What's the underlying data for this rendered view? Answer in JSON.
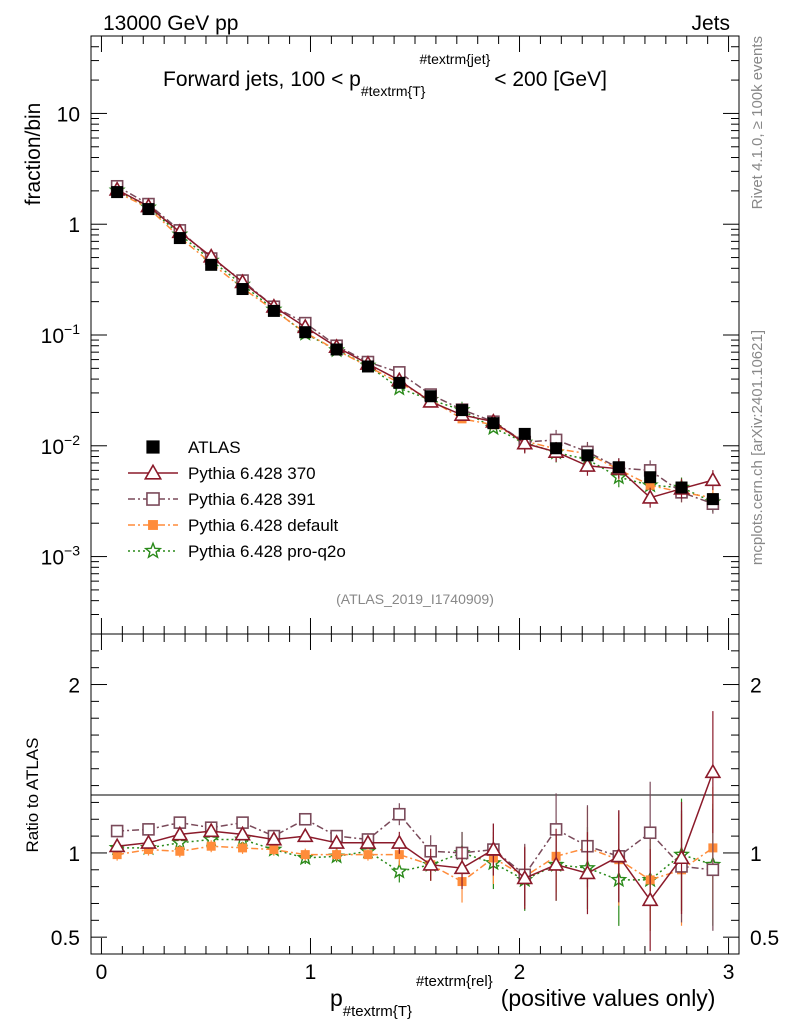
{
  "header": {
    "energy": "13000 GeV pp",
    "tag": "Jets"
  },
  "side": {
    "rivet": "Rivet 4.1.0, ≥ 100k events",
    "mcplots": "mcplots.cern.ch [arXiv:2401.10621]"
  },
  "main_title": {
    "pre": "Forward jets, 100 < p",
    "sub": "#textrm{T}",
    "sup": "#textrm{jet}",
    "post": "< 200 [GeV]"
  },
  "watermark": "(ATLAS_2019_I1740909)",
  "xlabel": {
    "pre": "p",
    "sub": "#textrm{T}",
    "sup": "#textrm{rel}",
    "post": "(positive values only)"
  },
  "colors": {
    "ATLAS": "#000000",
    "p370": "#8b1a2a",
    "p391": "#7a4a5a",
    "def": "#ff8c3a",
    "pro": "#2a8a1a"
  },
  "chart_data": [
    {
      "type": "scatter",
      "title": "Forward jets, 100 < p_T^jet < 200 [GeV]",
      "ylabel": "fraction/bin",
      "yscale": "log",
      "ylim": [
        0.0002,
        50
      ],
      "xlim": [
        -0.05,
        3.05
      ],
      "yticks": [
        {
          "v": 10,
          "b": "10",
          "e": ""
        },
        {
          "v": 1,
          "b": "1",
          "e": ""
        },
        {
          "v": 0.1,
          "b": "10",
          "e": "−1"
        },
        {
          "v": 0.01,
          "b": "10",
          "e": "−2"
        },
        {
          "v": 0.001,
          "b": "10",
          "e": "−3"
        }
      ],
      "x": [
        0.075,
        0.225,
        0.375,
        0.525,
        0.675,
        0.825,
        0.975,
        1.125,
        1.275,
        1.425,
        1.575,
        1.725,
        1.875,
        2.025,
        2.175,
        2.325,
        2.475,
        2.625,
        2.775,
        2.925
      ],
      "series": [
        {
          "name": "ATLAS",
          "key": "ATLAS",
          "marker": "square-filled",
          "values": [
            1.95,
            1.37,
            0.75,
            0.43,
            0.26,
            0.165,
            0.106,
            0.074,
            0.052,
            0.037,
            0.028,
            0.021,
            0.016,
            0.0128,
            0.0095,
            0.0082,
            0.0064,
            0.0052,
            0.0042,
            0.0033
          ]
        },
        {
          "name": "Pythia 6.428 370",
          "key": "p370",
          "marker": "triangle-open",
          "dash": "",
          "values": [
            2.05,
            1.45,
            0.85,
            0.51,
            0.3,
            0.18,
            0.118,
            0.078,
            0.055,
            0.039,
            0.025,
            0.019,
            0.0165,
            0.0105,
            0.0088,
            0.0066,
            0.0062,
            0.0034,
            0.0041,
            0.0049
          ]
        },
        {
          "name": "Pythia 6.428 391",
          "key": "p391",
          "marker": "square-open",
          "dash": "7,3,2,3",
          "values": [
            2.2,
            1.52,
            0.88,
            0.49,
            0.31,
            0.18,
            0.128,
            0.08,
            0.057,
            0.046,
            0.029,
            0.0212,
            0.0165,
            0.0108,
            0.0113,
            0.0088,
            0.0063,
            0.006,
            0.0038,
            0.003
          ]
        },
        {
          "name": "Pythia 6.428 default",
          "key": "def",
          "marker": "square-filled-small",
          "dash": "7,3,2,3",
          "values": [
            1.94,
            1.4,
            0.76,
            0.445,
            0.265,
            0.167,
            0.105,
            0.073,
            0.052,
            0.037,
            0.026,
            0.0175,
            0.0155,
            0.011,
            0.0094,
            0.0085,
            0.0061,
            0.0044,
            0.0038,
            0.0034
          ]
        },
        {
          "name": "Pythia 6.428 pro-q2o",
          "key": "pro",
          "marker": "star-open",
          "dash": "2,3",
          "values": [
            2.02,
            1.42,
            0.81,
            0.47,
            0.285,
            0.17,
            0.103,
            0.073,
            0.053,
            0.033,
            0.026,
            0.021,
            0.0145,
            0.0107,
            0.0087,
            0.0075,
            0.0052,
            0.0044,
            0.0042,
            0.0031
          ]
        }
      ]
    },
    {
      "type": "scatter",
      "ylabel": "Ratio to ATLAS",
      "ylim": [
        0.4,
        2.3
      ],
      "xlim": [
        -0.05,
        3.05
      ],
      "yticks": [
        {
          "v": 0.5,
          "label": "0.5"
        },
        {
          "v": 1,
          "label": "1"
        },
        {
          "v": 2,
          "label": "2"
        }
      ],
      "xticks": [
        {
          "v": 0,
          "label": "0"
        },
        {
          "v": 1,
          "label": "1"
        },
        {
          "v": 2,
          "label": "2"
        },
        {
          "v": 3,
          "label": "3"
        }
      ],
      "x": [
        0.075,
        0.225,
        0.375,
        0.525,
        0.675,
        0.825,
        0.975,
        1.125,
        1.275,
        1.425,
        1.575,
        1.725,
        1.875,
        2.025,
        2.175,
        2.325,
        2.475,
        2.625,
        2.775,
        2.925
      ],
      "series": [
        {
          "name": "Pythia 6.428 370",
          "key": "p370",
          "values": [
            1.04,
            1.06,
            1.11,
            1.13,
            1.11,
            1.08,
            1.1,
            1.06,
            1.06,
            1.06,
            0.93,
            0.91,
            1.02,
            0.85,
            0.93,
            0.88,
            0.98,
            0.72,
            0.97,
            1.48
          ]
        },
        {
          "name": "Pythia 6.428 391",
          "key": "p391",
          "values": [
            1.13,
            1.14,
            1.18,
            1.15,
            1.18,
            1.1,
            1.2,
            1.1,
            1.08,
            1.23,
            1.01,
            1.0,
            1.02,
            0.87,
            1.14,
            1.04,
            0.98,
            1.12,
            0.92,
            0.9
          ]
        },
        {
          "name": "Pythia 6.428 default",
          "key": "def",
          "values": [
            0.99,
            1.02,
            1.01,
            1.04,
            1.03,
            1.02,
            0.99,
            0.99,
            0.99,
            0.99,
            0.93,
            0.83,
            0.97,
            0.86,
            0.98,
            1.03,
            0.96,
            0.84,
            0.9,
            1.03
          ]
        },
        {
          "name": "Pythia 6.428 pro-q2o",
          "key": "pro",
          "values": [
            1.03,
            1.03,
            1.06,
            1.08,
            1.08,
            1.02,
            0.97,
            0.98,
            1.01,
            0.89,
            0.93,
            1.0,
            0.94,
            0.84,
            0.93,
            0.91,
            0.84,
            0.84,
            0.99,
            0.93
          ]
        }
      ]
    }
  ]
}
